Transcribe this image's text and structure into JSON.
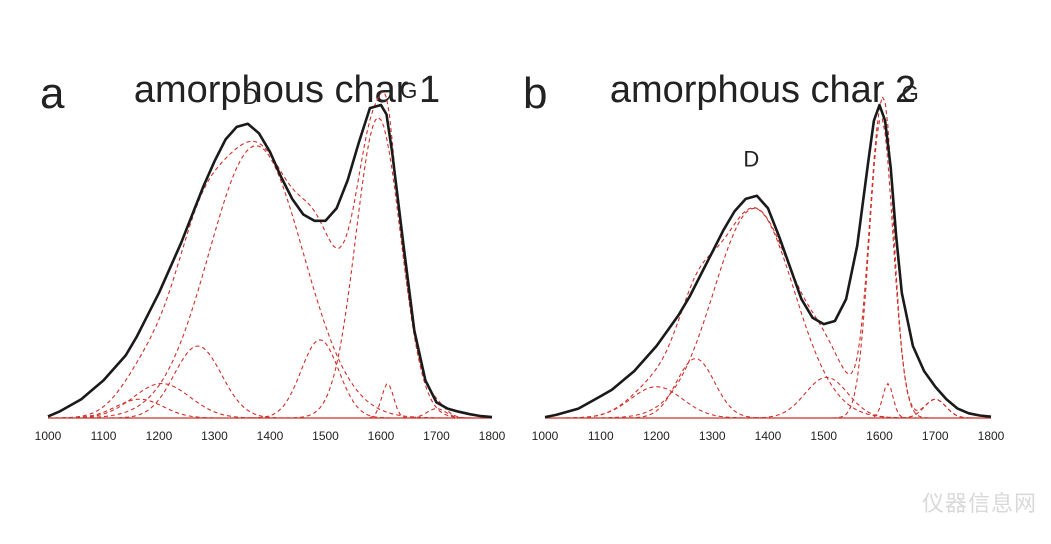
{
  "watermark": "仪器信息网",
  "chart_data": [
    {
      "type": "line",
      "panel_label": "a",
      "title": "amorphous char 1",
      "xlim": [
        1000,
        1800
      ],
      "x_ticks": [
        "1000",
        "1100",
        "1200",
        "1300",
        "1400",
        "1500",
        "1600",
        "1700",
        "1800"
      ],
      "peak_labels": [
        {
          "text": "D",
          "x": 1365,
          "y": 0.99
        },
        {
          "text": "G",
          "x": 1650,
          "y": 1.01
        }
      ],
      "colors": {
        "spectrum": "#1a1a1a",
        "fit": "#d0302a"
      },
      "spectrum": {
        "x": [
          1000,
          1020,
          1040,
          1060,
          1080,
          1100,
          1120,
          1140,
          1160,
          1180,
          1200,
          1220,
          1240,
          1260,
          1280,
          1300,
          1320,
          1340,
          1360,
          1380,
          1400,
          1420,
          1440,
          1460,
          1480,
          1500,
          1520,
          1540,
          1560,
          1580,
          1600,
          1610,
          1620,
          1640,
          1660,
          1680,
          1700,
          1720,
          1740,
          1760,
          1780,
          1800
        ],
        "y": [
          0.005,
          0.02,
          0.04,
          0.06,
          0.09,
          0.12,
          0.16,
          0.2,
          0.26,
          0.33,
          0.4,
          0.48,
          0.56,
          0.65,
          0.74,
          0.82,
          0.89,
          0.93,
          0.94,
          0.91,
          0.85,
          0.77,
          0.7,
          0.65,
          0.63,
          0.63,
          0.67,
          0.76,
          0.88,
          0.99,
          1.0,
          0.97,
          0.85,
          0.56,
          0.28,
          0.12,
          0.05,
          0.03,
          0.02,
          0.012,
          0.006,
          0.003
        ]
      },
      "components": [
        {
          "center": 1375,
          "height": 0.87,
          "width": 200
        },
        {
          "center": 1595,
          "height": 0.96,
          "width": 95
        },
        {
          "center": 1270,
          "height": 0.23,
          "width": 100
        },
        {
          "center": 1205,
          "height": 0.11,
          "width": 120
        },
        {
          "center": 1165,
          "height": 0.06,
          "width": 100
        },
        {
          "center": 1490,
          "height": 0.25,
          "width": 80
        },
        {
          "center": 1612,
          "height": 0.11,
          "width": 25
        },
        {
          "center": 1700,
          "height": 0.03,
          "width": 40
        }
      ]
    },
    {
      "type": "line",
      "panel_label": "b",
      "title": "amorphous char 2",
      "xlim": [
        1000,
        1800
      ],
      "x_ticks": [
        "1000",
        "1100",
        "1200",
        "1300",
        "1400",
        "1500",
        "1600",
        "1700",
        "1800"
      ],
      "peak_labels": [
        {
          "text": "D",
          "x": 1370,
          "y": 0.79
        },
        {
          "text": "G",
          "x": 1655,
          "y": 1.0
        }
      ],
      "colors": {
        "spectrum": "#1a1a1a",
        "fit": "#d0302a"
      },
      "spectrum": {
        "x": [
          1000,
          1020,
          1040,
          1060,
          1080,
          1100,
          1120,
          1140,
          1160,
          1180,
          1200,
          1220,
          1240,
          1260,
          1280,
          1300,
          1320,
          1340,
          1360,
          1380,
          1400,
          1420,
          1440,
          1460,
          1480,
          1500,
          1520,
          1540,
          1560,
          1580,
          1590,
          1600,
          1610,
          1620,
          1630,
          1640,
          1660,
          1680,
          1700,
          1720,
          1740,
          1760,
          1780,
          1800
        ],
        "y": [
          0.003,
          0.01,
          0.02,
          0.03,
          0.05,
          0.07,
          0.09,
          0.12,
          0.15,
          0.19,
          0.23,
          0.28,
          0.33,
          0.39,
          0.46,
          0.53,
          0.6,
          0.66,
          0.7,
          0.71,
          0.67,
          0.58,
          0.48,
          0.38,
          0.32,
          0.3,
          0.31,
          0.38,
          0.55,
          0.82,
          0.95,
          1.0,
          0.95,
          0.8,
          0.58,
          0.4,
          0.23,
          0.15,
          0.1,
          0.06,
          0.03,
          0.015,
          0.008,
          0.004
        ]
      },
      "components": [
        {
          "center": 1375,
          "height": 0.67,
          "width": 170
        },
        {
          "center": 1603,
          "height": 0.96,
          "width": 50
        },
        {
          "center": 1270,
          "height": 0.19,
          "width": 80
        },
        {
          "center": 1200,
          "height": 0.1,
          "width": 110
        },
        {
          "center": 1505,
          "height": 0.13,
          "width": 90
        },
        {
          "center": 1615,
          "height": 0.11,
          "width": 22
        },
        {
          "center": 1700,
          "height": 0.06,
          "width": 45
        }
      ]
    }
  ]
}
